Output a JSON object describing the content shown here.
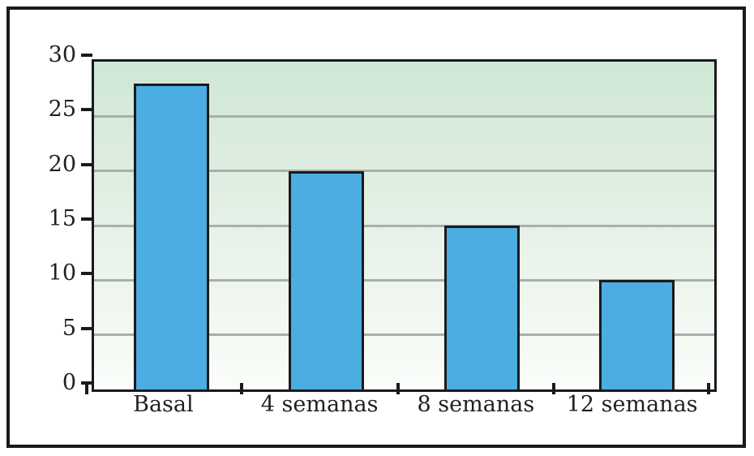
{
  "chart_data": {
    "type": "bar",
    "categories": [
      "Basal",
      "4 semanas",
      "8 semanas",
      "12 semanas"
    ],
    "values": [
      28,
      20,
      15,
      10
    ],
    "title": "",
    "xlabel": "",
    "ylabel": "",
    "ylim": [
      0,
      30
    ],
    "yticks": [
      0,
      5,
      10,
      15,
      20,
      25,
      30
    ],
    "grid": true,
    "legend_position": "none",
    "series_count": 1
  },
  "colors": {
    "bar_fill": "#4BADE2",
    "bar_border": "#1A1A1A",
    "plot_bg_top": "#CFE7D4",
    "plot_bg_bottom": "#FBFDFA",
    "gridline": "#A9ADAF",
    "axis": "#1A1A1A",
    "frame": "#1A1A1A",
    "text": "#231F20"
  }
}
